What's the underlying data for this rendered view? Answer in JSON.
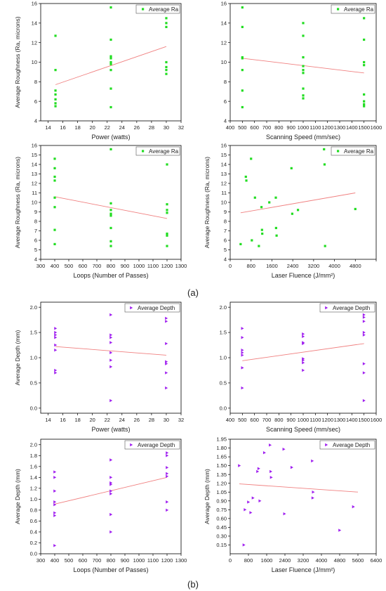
{
  "labels": {
    "a": "(a)",
    "b": "(b)"
  },
  "colors": {
    "ra_marker": "#22dd22",
    "depth_marker": "#a020f0",
    "fit_line": "#f08080",
    "frame": "#000000"
  },
  "chart_data": [
    {
      "id": "ra_power",
      "type": "scatter",
      "xlabel": "Power (watts)",
      "ylabel": "Average Roughness (Ra, microns)",
      "xlim": [
        13,
        32
      ],
      "ylim": [
        4,
        16
      ],
      "xticks": [
        14,
        16,
        18,
        20,
        22,
        24,
        26,
        28,
        30,
        32
      ],
      "yticks": [
        4,
        6,
        8,
        10,
        12,
        14,
        16
      ],
      "legend": "Average Ra",
      "legend_placement": "top-right",
      "marker": "square",
      "series": [
        {
          "name": "Average Ra",
          "x": [
            15,
            15,
            15,
            15,
            15,
            15,
            15,
            22.5,
            22.5,
            22.5,
            22.5,
            22.5,
            22.5,
            22.5,
            22.5,
            22.5,
            30,
            30,
            30,
            30,
            30,
            30,
            30
          ],
          "y": [
            12.7,
            9.2,
            7.1,
            6.7,
            6.2,
            5.8,
            5.5,
            15.6,
            12.3,
            10.6,
            10.4,
            9.8,
            9.2,
            7.3,
            5.4,
            10.0,
            14.5,
            14.0,
            13.6,
            10.0,
            9.5,
            9.2,
            8.8
          ]
        }
      ],
      "fit": {
        "x": [
          15,
          30
        ],
        "y": [
          7.7,
          11.6
        ]
      }
    },
    {
      "id": "ra_speed",
      "type": "scatter",
      "xlabel": "Scanning Speed (mm/sec)",
      "ylabel": "",
      "xlim": [
        400,
        1600
      ],
      "ylim": [
        4,
        16
      ],
      "xticks": [
        400,
        500,
        600,
        700,
        800,
        900,
        1000,
        1100,
        1200,
        1300,
        1400,
        1500,
        1600
      ],
      "yticks": [
        4,
        6,
        8,
        10,
        12,
        14,
        16
      ],
      "legend": "Average Ra",
      "legend_placement": "top-right",
      "marker": "square",
      "series": [
        {
          "name": "Average Ra",
          "x": [
            500,
            500,
            500,
            500,
            500,
            500,
            500,
            1000,
            1000,
            1000,
            1000,
            1000,
            1000,
            1000,
            1000,
            1000,
            1500,
            1500,
            1500,
            1500,
            1500,
            1500,
            1500,
            1500
          ],
          "y": [
            15.6,
            13.6,
            10.5,
            9.2,
            7.1,
            5.4,
            10.4,
            14.0,
            12.7,
            10.5,
            9.6,
            9.2,
            8.9,
            7.3,
            6.6,
            6.3,
            14.5,
            12.3,
            10.0,
            9.7,
            6.7,
            6.0,
            5.7,
            5.5
          ]
        }
      ],
      "fit": {
        "x": [
          500,
          1500
        ],
        "y": [
          10.4,
          8.9
        ]
      }
    },
    {
      "id": "ra_loops",
      "type": "scatter",
      "xlabel": "Loops (Number of Passes)",
      "ylabel": "Average Roughness (Ra, microns)",
      "xlim": [
        300,
        1300
      ],
      "ylim": [
        4,
        16
      ],
      "xticks": [
        300,
        400,
        500,
        600,
        700,
        800,
        900,
        1000,
        1100,
        1200,
        1300
      ],
      "yticks": [
        4,
        5,
        6,
        7,
        8,
        9,
        10,
        11,
        12,
        13,
        14,
        15,
        16
      ],
      "legend": "Average Ra",
      "legend_placement": "top-right",
      "marker": "square",
      "series": [
        {
          "name": "Average Ra",
          "x": [
            400,
            400,
            400,
            400,
            400,
            400,
            400,
            400,
            800,
            800,
            800,
            800,
            800,
            800,
            800,
            800,
            1200,
            1200,
            1200,
            1200,
            1200,
            1200,
            1200
          ],
          "y": [
            14.6,
            13.6,
            12.7,
            12.3,
            10.5,
            9.5,
            7.1,
            5.6,
            15.6,
            9.9,
            9.2,
            8.8,
            7.3,
            5.9,
            5.4,
            8.6,
            14.0,
            9.8,
            9.2,
            6.7,
            6.5,
            5.4,
            8.9
          ]
        }
      ],
      "fit": {
        "x": [
          400,
          1200
        ],
        "y": [
          10.6,
          8.3
        ]
      }
    },
    {
      "id": "ra_fluence",
      "type": "scatter",
      "xlabel": "Laser Fluence (J/mm²)",
      "ylabel": "Average Roughness (Ra, microns)",
      "xlim": [
        0,
        5600
      ],
      "ylim": [
        4,
        16
      ],
      "xticks": [
        0,
        800,
        1600,
        2400,
        3200,
        4000,
        4800,
        5600
      ],
      "xtick_labels": [
        "0",
        "800",
        "1600",
        "2400",
        "3200",
        "4000",
        "4800",
        ""
      ],
      "yticks": [
        4,
        5,
        6,
        7,
        8,
        9,
        10,
        11,
        12,
        13,
        14,
        15,
        16
      ],
      "legend": "Average Ra",
      "legend_placement": "top-right",
      "marker": "square",
      "series": [
        {
          "name": "Average Ra",
          "x": [
            400,
            600,
            620,
            800,
            830,
            950,
            1200,
            1220,
            1230,
            1500,
            1750,
            1760,
            1780,
            2350,
            2380,
            2600,
            3600,
            3620,
            3640,
            4800,
            1100
          ],
          "y": [
            5.6,
            12.7,
            12.3,
            14.6,
            6.0,
            10.5,
            9.5,
            7.1,
            6.7,
            10.0,
            10.5,
            7.3,
            6.5,
            13.6,
            8.8,
            9.2,
            15.6,
            14.0,
            5.4,
            9.3,
            5.4
          ]
        }
      ],
      "fit": {
        "x": [
          400,
          4800
        ],
        "y": [
          8.9,
          11.0
        ]
      }
    },
    {
      "id": "depth_power",
      "type": "scatter",
      "xlabel": "Power (watts)",
      "ylabel": "Average Depth (mm)",
      "xlim": [
        13,
        32
      ],
      "ylim": [
        -0.1,
        2.1
      ],
      "xticks": [
        14,
        16,
        18,
        20,
        22,
        24,
        26,
        28,
        30,
        32
      ],
      "yticks": [
        0.0,
        0.5,
        1.0,
        1.5,
        2.0
      ],
      "ytick_labels": [
        "0.0",
        "0.5",
        "1.0",
        "1.5",
        "2.0"
      ],
      "legend": "Average Depth",
      "legend_placement": "top-right",
      "marker": "triangle-right",
      "series": [
        {
          "name": "Average Depth",
          "x": [
            15,
            15,
            15,
            15,
            15,
            15,
            15,
            15,
            22.5,
            22.5,
            22.5,
            22.5,
            22.5,
            22.5,
            22.5,
            22.5,
            30,
            30,
            30,
            30,
            30,
            30,
            30
          ],
          "y": [
            1.58,
            1.5,
            1.45,
            1.4,
            1.25,
            1.15,
            0.75,
            0.7,
            1.85,
            1.45,
            1.4,
            1.3,
            1.1,
            0.95,
            0.82,
            0.15,
            1.78,
            1.72,
            1.28,
            0.92,
            0.88,
            0.7,
            0.4
          ]
        }
      ],
      "fit": {
        "x": [
          15,
          30
        ],
        "y": [
          1.22,
          1.05
        ]
      }
    },
    {
      "id": "depth_speed",
      "type": "scatter",
      "xlabel": "Scanning Speed (mm/sec)",
      "ylabel": "",
      "xlim": [
        400,
        1600
      ],
      "ylim": [
        -0.1,
        2.1
      ],
      "xticks": [
        400,
        500,
        600,
        700,
        800,
        900,
        1000,
        1100,
        1200,
        1300,
        1400,
        1500,
        1600
      ],
      "yticks": [
        0.0,
        0.5,
        1.0,
        1.5,
        2.0
      ],
      "ytick_labels": [
        "0.0",
        "0.5",
        "1.0",
        "1.5",
        "2.0"
      ],
      "legend": "Average Depth",
      "legend_placement": "top-right",
      "marker": "triangle-right",
      "series": [
        {
          "name": "Average Depth",
          "x": [
            500,
            500,
            500,
            500,
            500,
            500,
            500,
            1000,
            1000,
            1000,
            1000,
            1000,
            1000,
            1000,
            1000,
            1500,
            1500,
            1500,
            1500,
            1500,
            1500,
            1500,
            1500
          ],
          "y": [
            1.58,
            1.4,
            1.15,
            1.1,
            1.05,
            0.8,
            0.4,
            1.47,
            1.42,
            1.3,
            1.28,
            0.98,
            0.95,
            0.9,
            0.75,
            1.85,
            1.8,
            1.72,
            1.5,
            1.45,
            0.88,
            0.7,
            0.15
          ]
        }
      ],
      "fit": {
        "x": [
          500,
          1500
        ],
        "y": [
          0.94,
          1.28
        ]
      }
    },
    {
      "id": "depth_loops",
      "type": "scatter",
      "xlabel": "Loops (Number of Passes)",
      "ylabel": "Average Depth (mm)",
      "xlim": [
        300,
        1300
      ],
      "ylim": [
        0.0,
        2.1
      ],
      "xticks": [
        300,
        400,
        500,
        600,
        700,
        800,
        900,
        1000,
        1100,
        1200,
        1300
      ],
      "yticks": [
        0.0,
        0.2,
        0.4,
        0.6,
        0.8,
        1.0,
        1.2,
        1.4,
        1.6,
        1.8,
        2.0
      ],
      "ytick_labels": [
        "0.0",
        "0.2",
        "0.4",
        "0.6",
        "0.8",
        "1.0",
        "1.2",
        "1.4",
        "1.6",
        "1.8",
        "2.0"
      ],
      "legend": "Average Depth",
      "legend_placement": "top-right",
      "marker": "triangle-right",
      "series": [
        {
          "name": "Average Depth",
          "x": [
            400,
            400,
            400,
            400,
            400,
            400,
            400,
            400,
            800,
            800,
            800,
            800,
            800,
            800,
            800,
            800,
            1200,
            1200,
            1200,
            1200,
            1200,
            1200,
            1200
          ],
          "y": [
            1.5,
            1.4,
            1.15,
            0.95,
            0.9,
            0.75,
            0.7,
            0.15,
            1.72,
            1.4,
            1.3,
            1.27,
            1.15,
            1.1,
            0.72,
            0.4,
            1.85,
            1.8,
            1.58,
            1.47,
            1.42,
            0.95,
            0.8
          ]
        }
      ],
      "fit": {
        "x": [
          400,
          1200
        ],
        "y": [
          0.91,
          1.4
        ]
      }
    },
    {
      "id": "depth_fluence",
      "type": "scatter",
      "xlabel": "Laser Fluence (J/mm²)",
      "ylabel": "Average Depth (mm)",
      "xlim": [
        0,
        6400
      ],
      "ylim": [
        0.0,
        1.95
      ],
      "xticks": [
        0,
        800,
        1600,
        2400,
        3200,
        4000,
        4800,
        5600,
        6400
      ],
      "xtick_labels": [
        "0",
        "800",
        "1600",
        "2400",
        "3200",
        "4000",
        "4800",
        "5600",
        "6400"
      ],
      "yticks": [
        0.15,
        0.3,
        0.45,
        0.6,
        0.75,
        0.9,
        1.05,
        1.2,
        1.35,
        1.5,
        1.65,
        1.8,
        1.95
      ],
      "ytick_labels": [
        "0.15",
        "0.30",
        "0.45",
        "0.60",
        "0.75",
        "0.90",
        "1.05",
        "1.20",
        "1.35",
        "1.50",
        "1.65",
        "1.80",
        "1.95"
      ],
      "legend": "Average Depth",
      "legend_placement": "top-right",
      "marker": "triangle-right",
      "series": [
        {
          "name": "Average Depth",
          "x": [
            400,
            600,
            650,
            800,
            900,
            1000,
            1200,
            1250,
            1300,
            1500,
            1750,
            1780,
            1800,
            2350,
            2380,
            2700,
            3600,
            3620,
            3640,
            4800,
            5400
          ],
          "y": [
            1.5,
            0.15,
            0.75,
            0.88,
            0.7,
            0.95,
            1.4,
            1.45,
            0.9,
            1.72,
            1.85,
            1.4,
            1.3,
            1.78,
            0.68,
            1.47,
            1.58,
            0.95,
            1.05,
            0.4,
            0.8
          ]
        }
      ],
      "fit": {
        "x": [
          400,
          5600
        ],
        "y": [
          1.19,
          1.05
        ]
      }
    }
  ]
}
